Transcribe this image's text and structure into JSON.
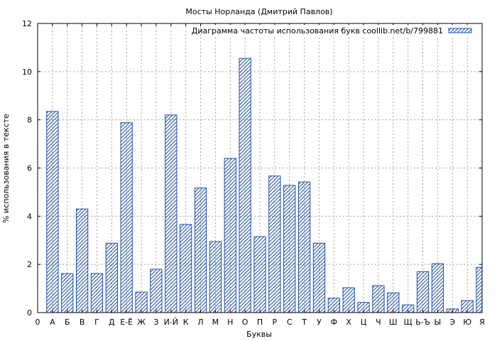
{
  "chart_data": {
    "type": "bar",
    "title": "Мосты Норланда (Дмитрий Павлов)",
    "xlabel": "Буквы",
    "ylabel": "% использования в тексте",
    "ylim": [
      0,
      12
    ],
    "yticks": [
      0,
      2,
      4,
      6,
      8,
      10,
      12
    ],
    "grid": true,
    "legend_position": "top-right",
    "bar_color": "#1f4fa8",
    "series": [
      {
        "name": "Диаграмма частоты использования букв coollib.net/b/799881",
        "values": [
          8.35,
          1.62,
          4.3,
          1.62,
          2.88,
          7.88,
          0.85,
          1.8,
          8.2,
          3.66,
          5.17,
          2.95,
          6.4,
          10.55,
          3.15,
          5.67,
          5.28,
          5.42,
          2.88,
          0.6,
          1.03,
          0.42,
          1.12,
          0.82,
          0.32,
          1.7,
          2.03,
          0.15,
          0.5,
          1.88
        ]
      }
    ],
    "categories": [
      "А",
      "Б",
      "В",
      "Г",
      "Д",
      "Е-Ё",
      "Ж",
      "З",
      "И-Й",
      "К",
      "Л",
      "М",
      "Н",
      "О",
      "П",
      "Р",
      "С",
      "Т",
      "У",
      "Ф",
      "Х",
      "Ц",
      "Ч",
      "Ш",
      "Щ",
      "Ь-Ъ",
      "Ы",
      "Э",
      "Ю",
      "Я"
    ],
    "x_tick_labels": [
      "0",
      "А",
      "Б",
      "В",
      "Г",
      "Д",
      "Е-Ё",
      "Ж",
      "З",
      "И-Й",
      "К",
      "Л",
      "М",
      "Н",
      "О",
      "П",
      "Р",
      "С",
      "Т",
      "У",
      "Ф",
      "Х",
      "Ц",
      "Ч",
      "Ш",
      "Щ",
      "Ь-Ъ",
      "Ы",
      "Э",
      "Ю",
      "Я"
    ]
  }
}
